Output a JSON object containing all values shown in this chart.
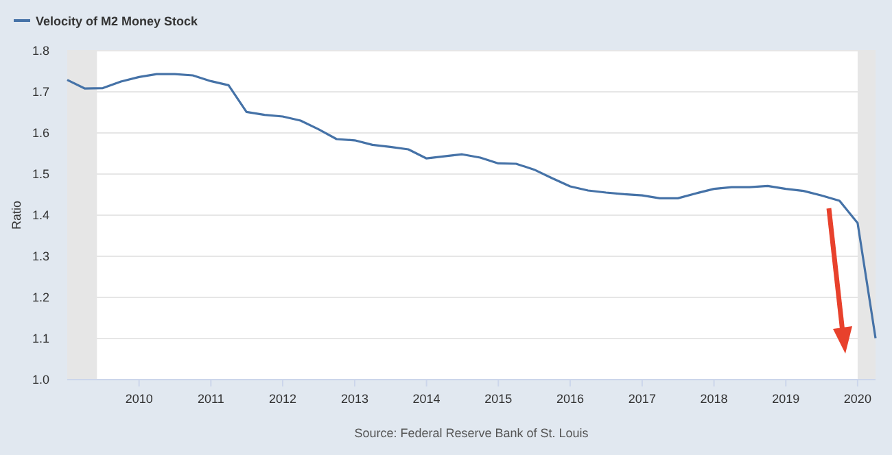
{
  "chart_data": {
    "type": "line",
    "ylabel": "Ratio",
    "x": [
      "2009-01-01",
      "2009-04-01",
      "2009-07-01",
      "2009-10-01",
      "2010-01-01",
      "2010-04-01",
      "2010-07-01",
      "2010-10-01",
      "2011-01-01",
      "2011-04-01",
      "2011-07-01",
      "2011-10-01",
      "2012-01-01",
      "2012-04-01",
      "2012-07-01",
      "2012-10-01",
      "2013-01-01",
      "2013-04-01",
      "2013-07-01",
      "2013-10-01",
      "2014-01-01",
      "2014-04-01",
      "2014-07-01",
      "2014-10-01",
      "2015-01-01",
      "2015-04-01",
      "2015-07-01",
      "2015-10-01",
      "2016-01-01",
      "2016-04-01",
      "2016-07-01",
      "2016-10-01",
      "2017-01-01",
      "2017-04-01",
      "2017-07-01",
      "2017-10-01",
      "2018-01-01",
      "2018-04-01",
      "2018-07-01",
      "2018-10-01",
      "2019-01-01",
      "2019-04-01",
      "2019-07-01",
      "2019-10-01",
      "2020-01-01",
      "2020-04-01"
    ],
    "series": [
      {
        "name": "Velocity of M2 Money Stock",
        "color": "#4572a7",
        "values": [
          1.729,
          1.708,
          1.709,
          1.725,
          1.736,
          1.743,
          1.743,
          1.74,
          1.726,
          1.716,
          1.651,
          1.644,
          1.64,
          1.63,
          1.609,
          1.585,
          1.582,
          1.571,
          1.566,
          1.56,
          1.538,
          1.543,
          1.548,
          1.54,
          1.526,
          1.525,
          1.511,
          1.49,
          1.47,
          1.46,
          1.455,
          1.451,
          1.448,
          1.441,
          1.441,
          1.453,
          1.464,
          1.468,
          1.468,
          1.471,
          1.464,
          1.459,
          1.448,
          1.435,
          1.381,
          1.101
        ]
      }
    ],
    "xlim": [
      "2009-01-01",
      "2020-04-01"
    ],
    "xticks": [
      {
        "value": "2010-01-01",
        "label": "2010"
      },
      {
        "value": "2011-01-01",
        "label": "2011"
      },
      {
        "value": "2012-01-01",
        "label": "2012"
      },
      {
        "value": "2013-01-01",
        "label": "2013"
      },
      {
        "value": "2014-01-01",
        "label": "2014"
      },
      {
        "value": "2015-01-01",
        "label": "2015"
      },
      {
        "value": "2016-01-01",
        "label": "2016"
      },
      {
        "value": "2017-01-01",
        "label": "2017"
      },
      {
        "value": "2018-01-01",
        "label": "2018"
      },
      {
        "value": "2019-01-01",
        "label": "2019"
      },
      {
        "value": "2020-01-01",
        "label": "2020"
      }
    ],
    "ylim": [
      1.0,
      1.8
    ],
    "yticks": [
      {
        "value": 1.0,
        "label": "1.0"
      },
      {
        "value": 1.1,
        "label": "1.1"
      },
      {
        "value": 1.2,
        "label": "1.2"
      },
      {
        "value": 1.3,
        "label": "1.3"
      },
      {
        "value": 1.4,
        "label": "1.4"
      },
      {
        "value": 1.5,
        "label": "1.5"
      },
      {
        "value": 1.6,
        "label": "1.6"
      },
      {
        "value": 1.7,
        "label": "1.7"
      },
      {
        "value": 1.8,
        "label": "1.8"
      }
    ],
    "bands": [
      {
        "axis": "x",
        "from": "2009-01-01",
        "to": "2009-06-01",
        "color": "#e6e6e6"
      },
      {
        "axis": "x",
        "from": "2020-01-01",
        "to": "2020-04-01",
        "color": "#e6e6e6"
      }
    ],
    "grid": "y",
    "legend": "top left",
    "marker": "none",
    "line_style": "solid",
    "annotations": [
      "Source: Federal Reserve Bank of St. Louis"
    ]
  }
}
